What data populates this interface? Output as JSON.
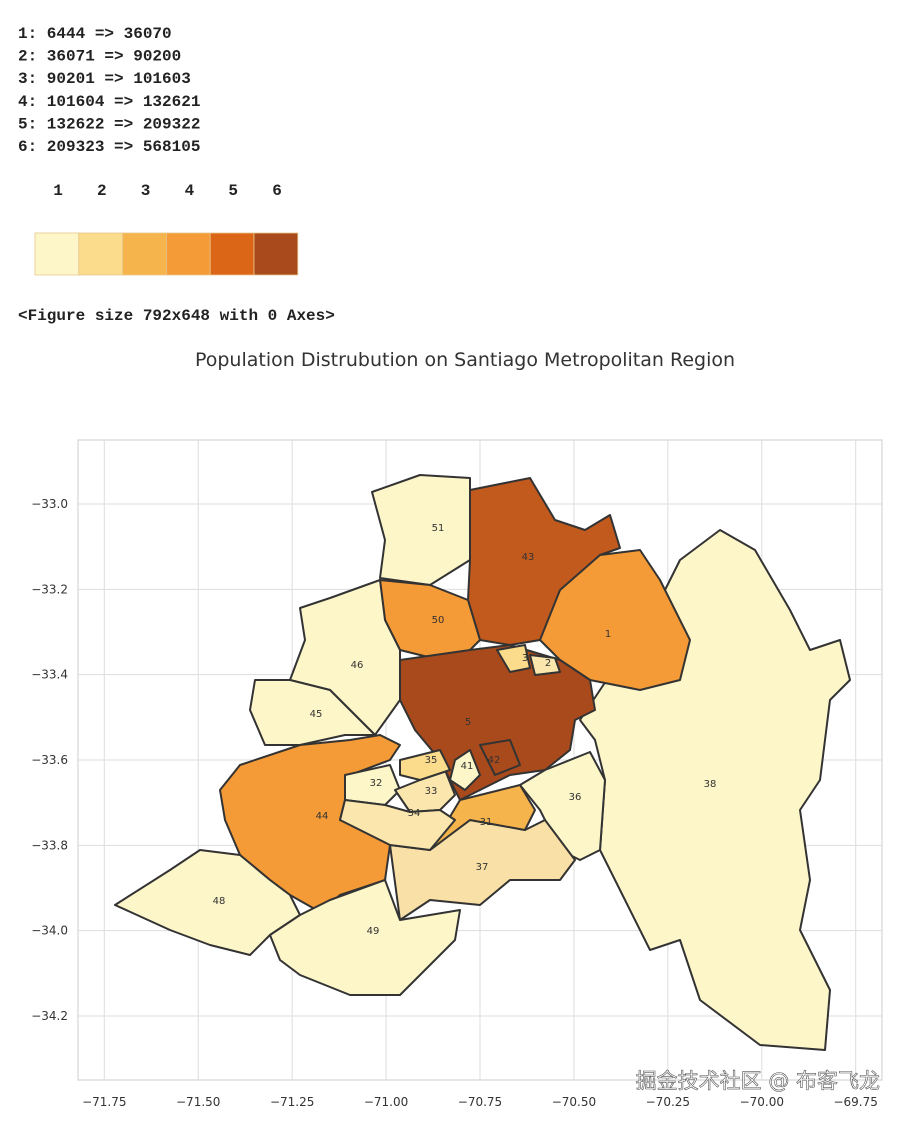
{
  "output_lines": [
    "1: 6444 => 36070",
    "2: 36071 => 90200",
    "3: 90201 => 101603",
    "4: 101604 => 132621",
    "5: 132622 => 209322",
    "6: 209323 => 568105"
  ],
  "colorbar": {
    "labels": [
      "1",
      "2",
      "3",
      "4",
      "5",
      "6"
    ],
    "colors": [
      "#fdf6c9",
      "#fbdb8c",
      "#f6b44c",
      "#f49a36",
      "#db6618",
      "#a94a1c"
    ]
  },
  "figure_repr": "<Figure size 792x648 with 0 Axes>",
  "map": {
    "title": "Population Distrubution on Santiago Metropolitan Region",
    "grid": true,
    "xlim": [
      -71.82,
      -69.68
    ],
    "xticks": [
      {
        "value": -71.75,
        "label": "−71.75"
      },
      {
        "value": -71.5,
        "label": "−71.50"
      },
      {
        "value": -71.25,
        "label": "−71.25"
      },
      {
        "value": -71.0,
        "label": "−71.00"
      },
      {
        "value": -70.75,
        "label": "−70.75"
      },
      {
        "value": -70.5,
        "label": "−70.50"
      },
      {
        "value": -70.25,
        "label": "−70.25"
      },
      {
        "value": -70.0,
        "label": "−70.00"
      },
      {
        "value": -69.75,
        "label": "−69.75"
      }
    ],
    "ylim": [
      -34.35,
      -32.85
    ],
    "yticks": [
      {
        "value": -33.0,
        "label": "−33.0"
      },
      {
        "value": -33.2,
        "label": "−33.2"
      },
      {
        "value": -33.4,
        "label": "−33.4"
      },
      {
        "value": -33.6,
        "label": "−33.6"
      },
      {
        "value": -33.8,
        "label": "−33.8"
      },
      {
        "value": -34.0,
        "label": "−34.0"
      },
      {
        "value": -34.2,
        "label": "−34.2"
      }
    ],
    "regions": [
      {
        "label": "38",
        "color": "#fdf6c9"
      },
      {
        "label": "51",
        "color": "#fdf6c9"
      },
      {
        "label": "43",
        "color": "#c25a1e"
      },
      {
        "label": "1",
        "color": "#f49a36"
      },
      {
        "label": "50",
        "color": "#f49a36"
      },
      {
        "label": "46",
        "color": "#fdf6c9"
      },
      {
        "label": "45",
        "color": "#fdf6c9"
      },
      {
        "label": "5",
        "color": "#a94a1c"
      },
      {
        "label": "36",
        "color": "#fdf6c9"
      },
      {
        "label": "37",
        "color": "#f9e0a6"
      },
      {
        "label": "31",
        "color": "#f6b44c"
      },
      {
        "label": "44",
        "color": "#f49a36"
      },
      {
        "label": "48",
        "color": "#fdf6c9"
      },
      {
        "label": "49",
        "color": "#fdf6c9"
      },
      {
        "label": "32",
        "color": "#fdf6c9"
      },
      {
        "label": "33",
        "color": "#fbe7ae"
      },
      {
        "label": "34",
        "color": "#fbe7ae"
      },
      {
        "label": "35",
        "color": "#fbdb8c"
      },
      {
        "label": "41",
        "color": "#fdf6c9"
      },
      {
        "label": "3",
        "color": "#fbdb8c"
      },
      {
        "label": "2",
        "color": "#fbe7ae"
      },
      {
        "label": "42",
        "color": "#a94a1c"
      }
    ]
  },
  "watermark": "掘金技术社区 @ 布客飞龙"
}
